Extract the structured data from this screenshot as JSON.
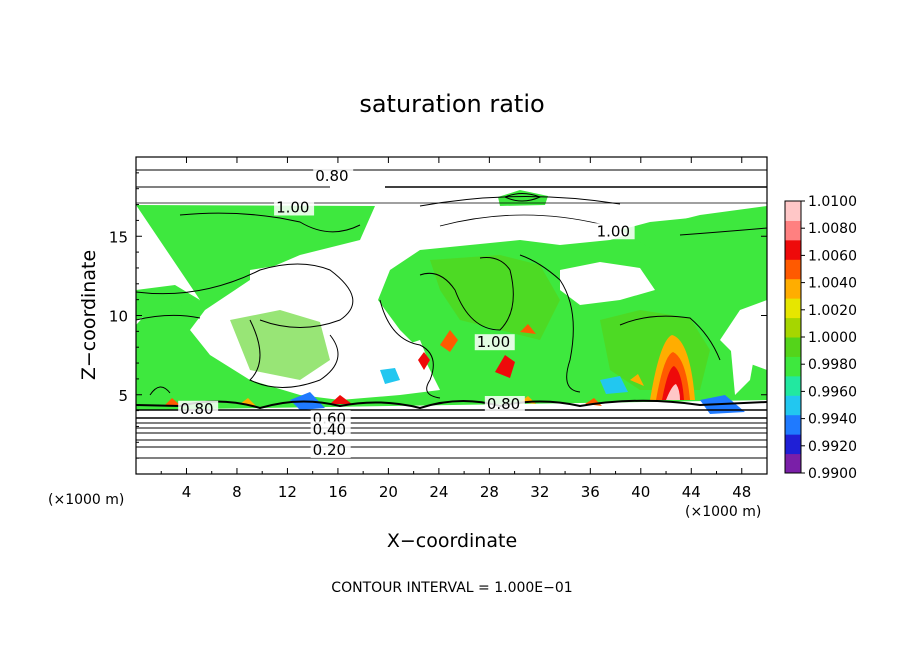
{
  "chart_data": {
    "type": "heatmap",
    "title": "saturation ratio",
    "xlabel": "X−coordinate",
    "ylabel": "Z−coordinate",
    "x_unit_left": "(×1000 m)",
    "x_unit_right": "(×1000 m)",
    "xlim": [
      0,
      50
    ],
    "ylim": [
      0,
      20
    ],
    "x_ticks": [
      4,
      8,
      12,
      16,
      20,
      24,
      28,
      32,
      36,
      40,
      44,
      48
    ],
    "x_tick_labels": [
      "4",
      "8",
      "12",
      "16",
      "20",
      "24",
      "28",
      "32",
      "36",
      "40",
      "44",
      "48"
    ],
    "y_ticks": [
      5,
      10,
      15
    ],
    "y_tick_labels": [
      "5",
      "10",
      "15"
    ],
    "grid": false,
    "contour_interval_text": "CONTOUR INTERVAL = 1.000E−01",
    "contour_labels": [
      {
        "text": "0.80",
        "x": 14.2,
        "y": 18.5
      },
      {
        "text": "1.00",
        "x": 11.1,
        "y": 16.5
      },
      {
        "text": "1.00",
        "x": 36.5,
        "y": 15.0
      },
      {
        "text": "1.00",
        "x": 27.0,
        "y": 8.0
      },
      {
        "text": "0.80",
        "x": 3.5,
        "y": 3.8
      },
      {
        "text": "0.80",
        "x": 27.8,
        "y": 4.1
      },
      {
        "text": "0.60",
        "x": 14.0,
        "y": 3.2
      },
      {
        "text": "0.40",
        "x": 14.0,
        "y": 2.5
      },
      {
        "text": "0.20",
        "x": 14.0,
        "y": 1.2
      }
    ],
    "colorbar": {
      "min": 0.99,
      "max": 1.01,
      "levels": [
        "1.0100",
        "1.0080",
        "1.0060",
        "1.0040",
        "1.0020",
        "1.0000",
        "0.9980",
        "0.9960",
        "0.9940",
        "0.9920",
        "0.9900"
      ],
      "colors": [
        "#7a1fa8",
        "#1f1fd6",
        "#1f7aff",
        "#22c7f0",
        "#22e8a0",
        "#3ee83e",
        "#54d41a",
        "#a6d600",
        "#e6e600",
        "#ffad00",
        "#ff5a00",
        "#ee0a0a",
        "#ff8080",
        "#ffc7c7"
      ]
    }
  }
}
